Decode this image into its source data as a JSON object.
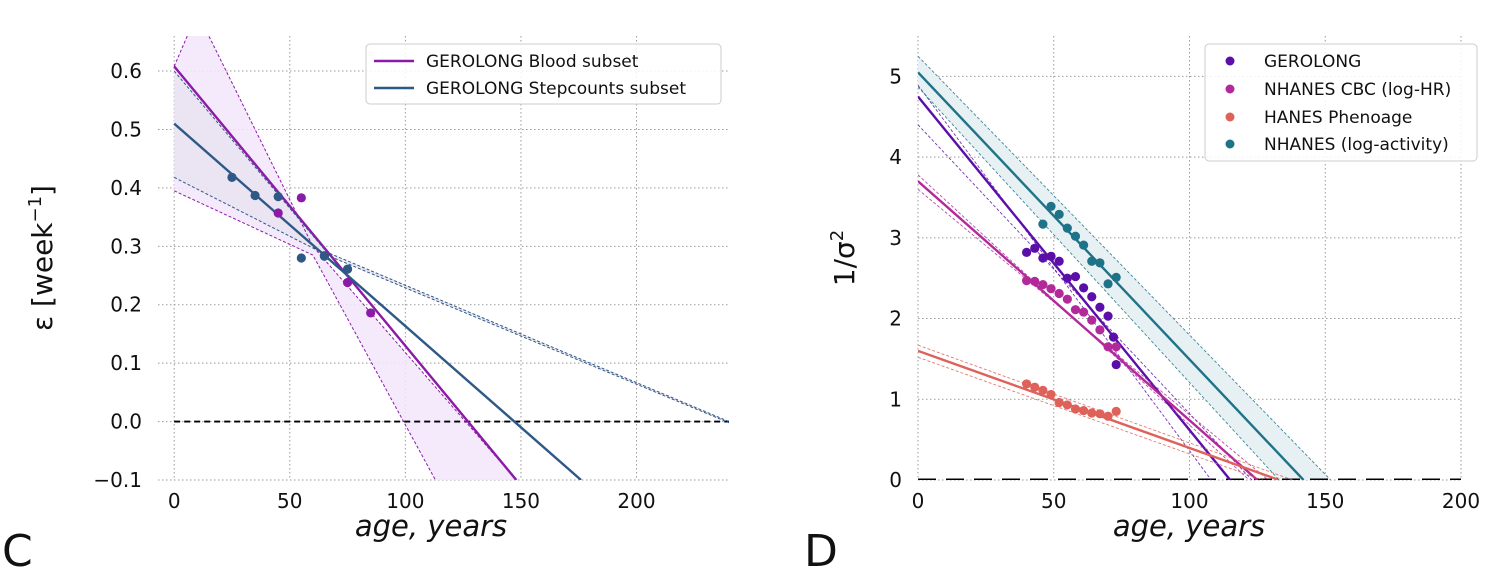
{
  "figure": {
    "panel_labels": [
      "C",
      "D"
    ]
  },
  "chart_data": [
    {
      "type": "scatter",
      "panel": "C",
      "xlabel": "age, years",
      "ylabel": "ε [week−1]",
      "ylabel_main": "ε [week",
      "ylabel_sup": "−1",
      "ylabel_close": "]",
      "xlim": [
        -7,
        240
      ],
      "ylim": [
        -0.1,
        0.66
      ],
      "xticks": [
        0,
        50,
        100,
        150,
        200
      ],
      "xtick_labels": [
        "0",
        "50",
        "100",
        "150",
        "200"
      ],
      "yticks": [
        -0.1,
        0.0,
        0.1,
        0.2,
        0.3,
        0.4,
        0.5,
        0.6
      ],
      "ytick_labels": [
        "−0.1",
        "0.0",
        "0.1",
        "0.2",
        "0.3",
        "0.4",
        "0.5",
        "0.6"
      ],
      "grid": true,
      "legend_position": "top-right",
      "zero_line": 0,
      "series": [
        {
          "name": "GEROLONG Blood subset",
          "color": "#8b1aa6",
          "points": [
            [
              45,
              0.357
            ],
            [
              55,
              0.383
            ],
            [
              65,
              0.284
            ],
            [
              75,
              0.238
            ],
            [
              85,
              0.186
            ]
          ],
          "fit": {
            "x0": 0,
            "y0": 0.608,
            "x_end": 148,
            "y_end": -0.1
          },
          "band": {
            "upper": [
              [
                0,
                0.608
              ],
              [
                10,
                0.7
              ],
              [
                60,
                0.3
              ],
              [
                148,
                -0.1
              ]
            ],
            "lower": [
              [
                0,
                0.395
              ],
              [
                60,
                0.285
              ],
              [
                113,
                -0.1
              ]
            ],
            "fill": "#f3e6fb"
          }
        },
        {
          "name": "GEROLONG Stepcounts subset",
          "color": "#2e5886",
          "points": [
            [
              25,
              0.418
            ],
            [
              35,
              0.387
            ],
            [
              45,
              0.385
            ],
            [
              55,
              0.28
            ],
            [
              65,
              0.283
            ],
            [
              75,
              0.261
            ]
          ],
          "fit": {
            "x0": 0,
            "y0": 0.51,
            "x_end": 176,
            "y_end": -0.1
          },
          "band": {
            "upper": [
              [
                0,
                0.6
              ],
              [
                66,
                0.29
              ],
              [
                240,
                0.0
              ]
            ],
            "lower": [
              [
                0,
                0.418
              ],
              [
                66,
                0.285
              ],
              [
                240,
                -0.002
              ]
            ],
            "fill": "#e7e3f1"
          }
        }
      ]
    },
    {
      "type": "scatter",
      "panel": "D",
      "xlabel": "age, years",
      "ylabel": "1/σ2",
      "ylabel_main": "1/σ",
      "ylabel_sup": "2",
      "xlim": [
        0,
        200
      ],
      "ylim": [
        0,
        5.5
      ],
      "xticks": [
        0,
        50,
        100,
        150,
        200
      ],
      "xtick_labels": [
        "0",
        "50",
        "100",
        "150",
        "200"
      ],
      "yticks": [
        0,
        1,
        2,
        3,
        4,
        5
      ],
      "ytick_labels": [
        "0",
        "1",
        "2",
        "3",
        "4",
        "5"
      ],
      "grid": true,
      "legend_position": "top-right",
      "zero_line": 0,
      "series": [
        {
          "name": "GEROLONG",
          "color": "#5b0fa8",
          "points": [
            [
              40,
              2.82
            ],
            [
              43,
              2.87
            ],
            [
              46,
              2.75
            ],
            [
              49,
              2.77
            ],
            [
              52,
              2.71
            ],
            [
              55,
              2.5
            ],
            [
              58,
              2.52
            ],
            [
              61,
              2.38
            ],
            [
              64,
              2.27
            ],
            [
              67,
              2.14
            ],
            [
              70,
              2.03
            ],
            [
              72,
              1.77
            ],
            [
              73,
              1.43
            ]
          ],
          "fit": {
            "x0": 0,
            "y0": 4.75,
            "x_end": 115,
            "y_end": 0
          },
          "bounds": [
            [
              [
                0,
                4.89
              ],
              [
                108,
                0
              ]
            ],
            [
              [
                0,
                4.4
              ],
              [
                123,
                0
              ]
            ]
          ]
        },
        {
          "name": "NHANES CBC (log-HR)",
          "color": "#b22a99",
          "points": [
            [
              40,
              2.47
            ],
            [
              43,
              2.46
            ],
            [
              46,
              2.42
            ],
            [
              49,
              2.37
            ],
            [
              52,
              2.31
            ],
            [
              55,
              2.24
            ],
            [
              58,
              2.11
            ],
            [
              61,
              2.08
            ],
            [
              64,
              1.98
            ],
            [
              67,
              1.86
            ],
            [
              70,
              1.65
            ],
            [
              73,
              1.65
            ]
          ],
          "fit": {
            "x0": 0,
            "y0": 3.7,
            "x_end": 125,
            "y_end": 0
          },
          "bounds": [
            [
              [
                0,
                3.78
              ],
              [
                122,
                0
              ]
            ],
            [
              [
                0,
                3.6
              ],
              [
                129,
                0
              ]
            ]
          ]
        },
        {
          "name": "HANES Phenoage",
          "color": "#de615a",
          "points": [
            [
              40,
              1.19
            ],
            [
              43,
              1.15
            ],
            [
              46,
              1.11
            ],
            [
              49,
              1.06
            ],
            [
              52,
              0.96
            ],
            [
              55,
              0.93
            ],
            [
              58,
              0.88
            ],
            [
              61,
              0.86
            ],
            [
              64,
              0.83
            ],
            [
              67,
              0.82
            ],
            [
              70,
              0.79
            ],
            [
              73,
              0.85
            ]
          ],
          "fit": {
            "x0": 0,
            "y0": 1.6,
            "x_end": 133,
            "y_end": 0
          },
          "bounds": [
            [
              [
                0,
                1.67
              ],
              [
                138,
                0
              ]
            ],
            [
              [
                0,
                1.52
              ],
              [
                127,
                0
              ]
            ]
          ]
        },
        {
          "name": "NHANES (log-activity)",
          "color": "#1f7388",
          "points": [
            [
              46,
              3.17
            ],
            [
              49,
              3.39
            ],
            [
              52,
              3.29
            ],
            [
              55,
              3.12
            ],
            [
              58,
              3.02
            ],
            [
              61,
              2.91
            ],
            [
              64,
              2.71
            ],
            [
              67,
              2.69
            ],
            [
              70,
              2.43
            ],
            [
              73,
              2.51
            ]
          ],
          "fit": {
            "x0": 0,
            "y0": 5.05,
            "x_end": 142,
            "y_end": 0
          },
          "bounds": [
            [
              [
                0,
                5.25
              ],
              [
                152,
                0
              ]
            ],
            [
              [
                0,
                4.87
              ],
              [
                133,
                0
              ]
            ]
          ],
          "band_fill": "#e7f1f4"
        }
      ]
    }
  ]
}
